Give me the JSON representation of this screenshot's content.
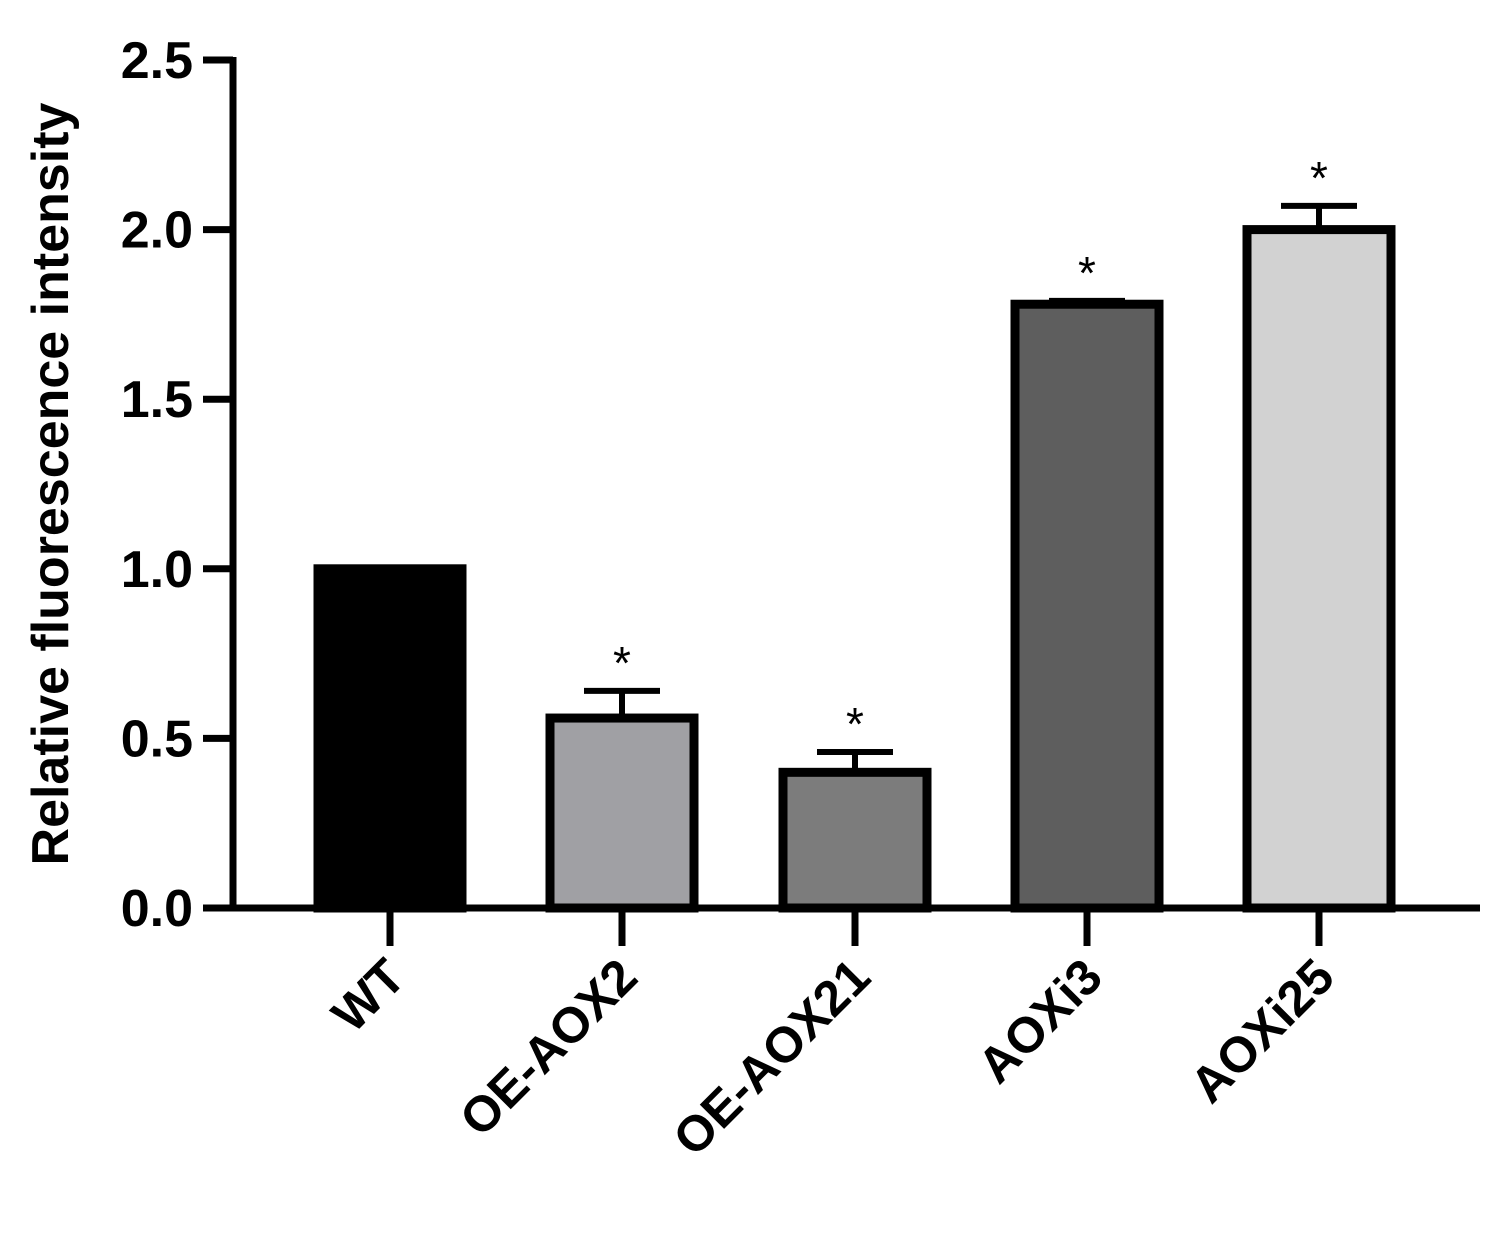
{
  "chart_data": {
    "type": "bar",
    "categories": [
      "WT",
      "OE-AOX2",
      "OE-AOX21",
      "AOXi3",
      "AOXi25"
    ],
    "values": [
      1.0,
      0.56,
      0.4,
      1.78,
      2.0
    ],
    "errors": [
      0,
      0.08,
      0.06,
      0.01,
      0.07
    ],
    "significance": [
      "",
      "*",
      "*",
      "*",
      "*"
    ],
    "colors": [
      "#000000",
      "#a0a0a4",
      "#7c7c7c",
      "#5e5e5e",
      "#d2d2d2"
    ],
    "title": "",
    "xlabel": "",
    "ylabel": "Relative fluorescence intensity",
    "ylim": [
      0,
      2.5
    ],
    "yticks": [
      "0.0",
      "0.5",
      "1.0",
      "1.5",
      "2.0",
      "2.5"
    ],
    "grid": false,
    "legend": "none"
  }
}
